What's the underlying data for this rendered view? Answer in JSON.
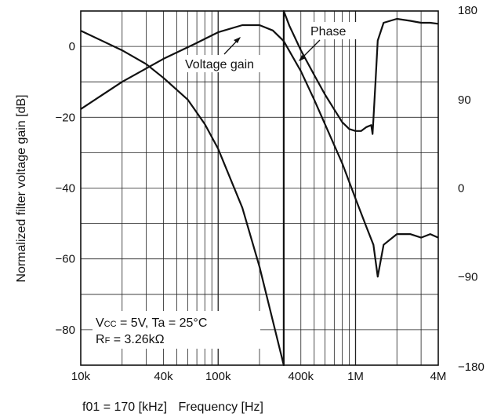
{
  "chart_data": {
    "type": "line",
    "title": "",
    "xlabel": "Frequency [Hz]",
    "xlabel_prefix": "f01 = 170 [kHz]",
    "ylabel": "Normalized filter voltage gain [dB]",
    "y2label": "",
    "xscale": "log",
    "xlim": [
      10000,
      4000000
    ],
    "ylim": [
      -90,
      10
    ],
    "y2lim": [
      -180,
      180
    ],
    "grid": true,
    "x_tick_labels": [
      {
        "label": "10k",
        "value": 10000
      },
      {
        "label": "40k",
        "value": 40000
      },
      {
        "label": "100k",
        "value": 100000
      },
      {
        "label": "400k",
        "value": 400000
      },
      {
        "label": "1M",
        "value": 1000000
      },
      {
        "label": "4M",
        "value": 4000000
      }
    ],
    "y_tick_labels": [
      {
        "label": "0",
        "value": 0
      },
      {
        "label": "−20",
        "value": -20
      },
      {
        "label": "−40",
        "value": -40
      },
      {
        "label": "−60",
        "value": -60
      },
      {
        "label": "−80",
        "value": -80
      }
    ],
    "y2_tick_labels": [
      {
        "label": "180",
        "value": 180
      },
      {
        "label": "90",
        "value": 90
      },
      {
        "label": "0",
        "value": 0
      },
      {
        "label": "−90",
        "value": -90
      },
      {
        "label": "−180",
        "value": -180
      }
    ],
    "annotations": [
      {
        "text": "Voltage gain",
        "target": "gain"
      },
      {
        "text": "Phase",
        "target": "phase"
      }
    ],
    "conditions": {
      "line1": {
        "v": "V",
        "v_sub": "CC",
        "rest": " = 5V, Ta = 25°C"
      },
      "line2": {
        "r": "R",
        "r_sub": "F",
        "rest": " = 3.26kΩ"
      }
    },
    "series": [
      {
        "key": "gain",
        "axis": "left",
        "x": [
          10000,
          20000,
          40000,
          70000,
          100000,
          150000,
          200000,
          250000,
          300000,
          400000,
          500000,
          600000,
          800000,
          1000000,
          1200000,
          1350000,
          1450000,
          1600000,
          2000000,
          2500000,
          3000000,
          3500000,
          4000000
        ],
        "values": [
          -17.7,
          -10,
          -3.5,
          1,
          4,
          6,
          6,
          4.5,
          1.5,
          -7,
          -15,
          -22,
          -33,
          -43,
          -51,
          -56,
          -65,
          -56,
          -53,
          -53,
          -54,
          -53,
          -54
        ]
      },
      {
        "key": "phase",
        "axis": "right",
        "x": [
          10000,
          20000,
          30000,
          40000,
          60000,
          80000,
          100000,
          150000,
          200000,
          250000,
          300000,
          300001,
          330000,
          400000,
          500000,
          600000,
          700000,
          800000,
          900000,
          1000000,
          1100000,
          1200000,
          1300000,
          1330000,
          1350000,
          1400000,
          1450000,
          1600000,
          2000000,
          2500000,
          3000000,
          3500000,
          4000000
        ],
        "values": [
          160,
          140,
          126,
          112,
          90,
          65,
          40,
          -20,
          -80,
          -135,
          -180,
          180,
          165,
          140,
          115,
          95,
          80,
          67,
          60,
          58,
          58,
          62,
          64,
          55,
          70,
          110,
          150,
          168,
          172,
          170,
          168,
          168,
          167
        ]
      }
    ]
  }
}
